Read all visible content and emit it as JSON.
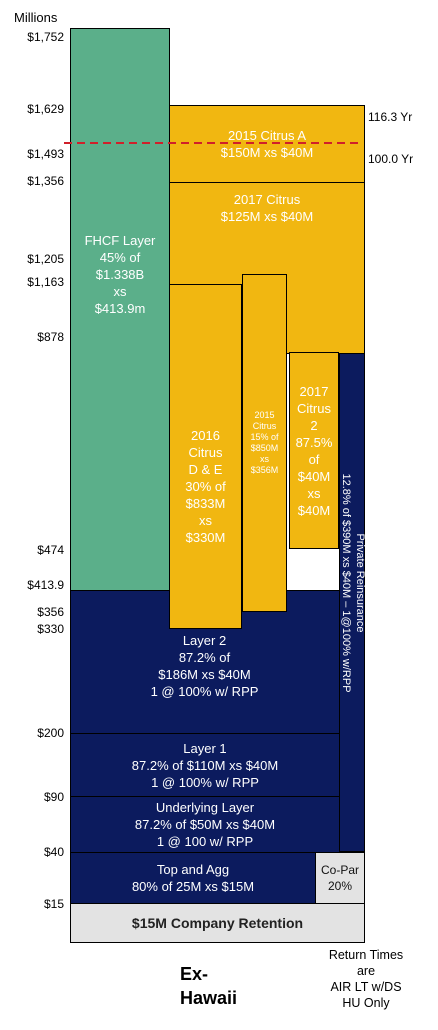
{
  "units_label": "Millions",
  "y_axis_labels": [
    "$1,752",
    "$1,629",
    "$1,493",
    "$1,356",
    "$1,205",
    "$1,163",
    "$878",
    "$474",
    "$413.9",
    "$356",
    "$330",
    "$200",
    "$90",
    "$40",
    "$15"
  ],
  "return_period_top": "116.3 Yr",
  "return_period_100": "100.0 Yr",
  "layers": {
    "fhcf": "FHCF Layer\n45% of\n$1.338B\nxs\n$413.9m",
    "citrus_2015a": "2015 Citrus A\n$150M xs $40M",
    "citrus_2017": "2017 Citrus\n$125M xs $40M",
    "citrus_2016": "2016\nCitrus\nD & E\n30% of\n$833M\nxs\n$330M",
    "citrus_2015_small": "2015\nCitrus\n15% of\n$850M\nxs\n$356M",
    "citrus_2017_2": "2017\nCitrus\n2\n87.5%\nof\n$40M\nxs\n$40M",
    "private_reinsurance": "Private Reinsurance\n12.8% of $390M xs $40M – 1@100% w/RPP",
    "layer2": "Layer 2\n87.2% of\n$186M xs $40M\n1 @ 100% w/ RPP",
    "layer1": "Layer 1\n87.2% of $110M xs $40M\n1 @ 100% w/ RPP",
    "underlying": "Underlying Layer\n87.2% of $50M xs $40M\n1 @ 100 w/ RPP",
    "top_agg": "Top and Agg\n80% of 25M xs $15M",
    "copar": "Co-Par\n20%",
    "retention": "$15M Company Retention"
  },
  "footer": {
    "region": "Ex-\nHawaii",
    "note": "Return Times\nare\nAIR LT w/DS\nHU Only"
  },
  "colors": {
    "gold": "#F1B711",
    "navy": "#0C1B5E",
    "green": "#5BAF8A",
    "gray": "#E3E3E3",
    "dashed_line": "#D0202A"
  }
}
